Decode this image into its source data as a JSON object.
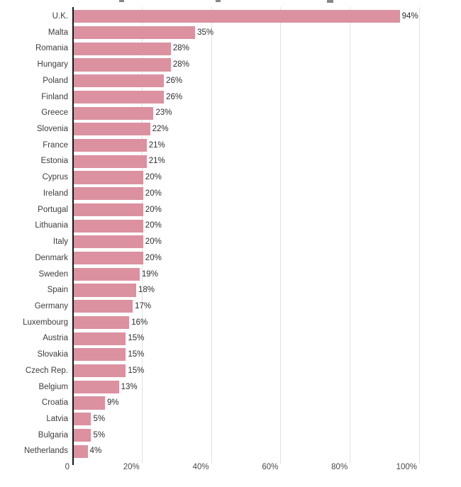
{
  "chart_data": {
    "type": "bar",
    "orientation": "horizontal",
    "title": "",
    "xlabel": "",
    "ylabel": "",
    "xlim": [
      0,
      100
    ],
    "grid": true,
    "legend": false,
    "categories": [
      "U.K.",
      "Malta",
      "Romania",
      "Hungary",
      "Poland",
      "Finland",
      "Greece",
      "Slovenia",
      "France",
      "Estonia",
      "Cyprus",
      "Ireland",
      "Portugal",
      "Lithuania",
      "Italy",
      "Denmark",
      "Sweden",
      "Spain",
      "Germany",
      "Luxembourg",
      "Austria",
      "Slovakia",
      "Czech Rep.",
      "Belgium",
      "Croatia",
      "Latvia",
      "Bulgaria",
      "Netherlands"
    ],
    "values": [
      94,
      35,
      28,
      28,
      26,
      26,
      23,
      22,
      21,
      21,
      20,
      20,
      20,
      20,
      20,
      20,
      19,
      18,
      17,
      16,
      15,
      15,
      15,
      13,
      9,
      5,
      5,
      4
    ],
    "value_labels": [
      "94%",
      "35%",
      "28%",
      "28%",
      "26%",
      "26%",
      "23%",
      "22%",
      "21%",
      "21%",
      "20%",
      "20%",
      "20%",
      "20%",
      "20%",
      "20%",
      "19%",
      "18%",
      "17%",
      "16%",
      "15%",
      "15%",
      "15%",
      "13%",
      "9%",
      "5%",
      "5%",
      "4%"
    ],
    "x_ticks": [
      {
        "label": "0",
        "value": 0
      },
      {
        "label": "20%",
        "value": 20
      },
      {
        "label": "40%",
        "value": 40
      },
      {
        "label": "60%",
        "value": 60
      },
      {
        "label": "80%",
        "value": 80
      },
      {
        "label": "100%",
        "value": 100
      }
    ],
    "colors": {
      "bar": "#db91a0",
      "gridline": "#e2e2e2",
      "axis": "#161616",
      "category_label": "#3d3d3d",
      "value_label": "#2e2e2e",
      "tick_label": "#4a4a4a"
    }
  }
}
